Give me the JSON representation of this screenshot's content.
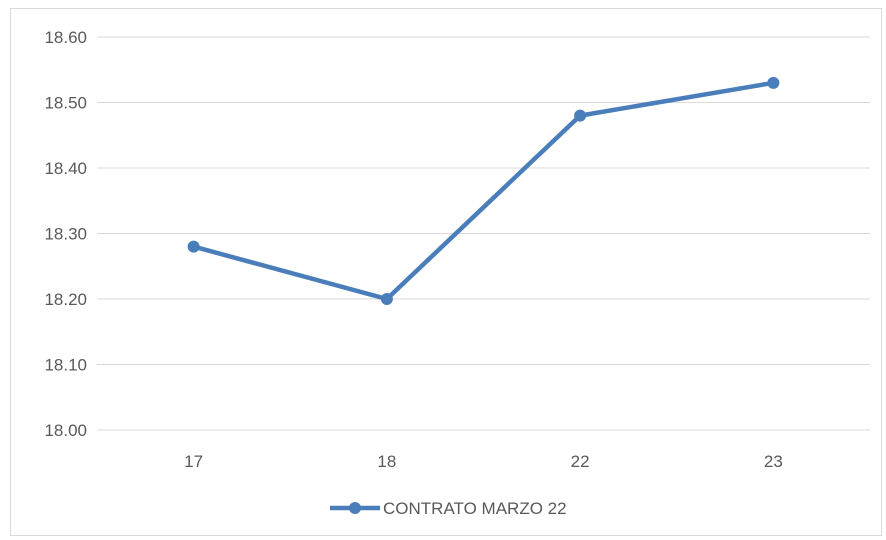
{
  "chart_data": {
    "type": "line",
    "title": "",
    "xlabel": "",
    "ylabel": "",
    "categories": [
      "17",
      "18",
      "22",
      "23"
    ],
    "series": [
      {
        "name": "CONTRATO MARZO 22",
        "values": [
          18.28,
          18.2,
          18.48,
          18.53
        ],
        "color": "#4a7ebb"
      }
    ],
    "ylim": [
      18.0,
      18.6
    ],
    "yticks": [
      "18.00",
      "18.10",
      "18.20",
      "18.30",
      "18.40",
      "18.50",
      "18.60"
    ],
    "grid": "horizontal",
    "legend": "bottom"
  }
}
